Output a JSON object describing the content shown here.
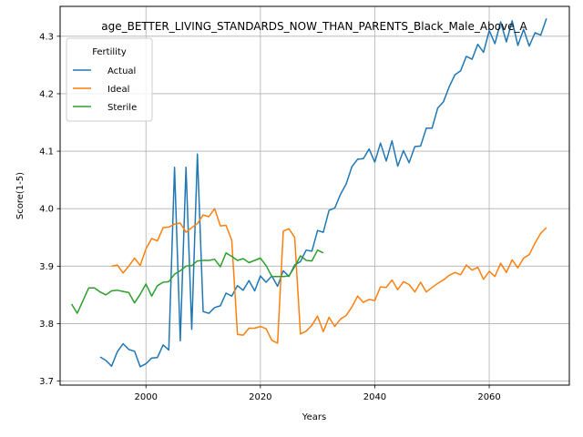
{
  "chart_data": {
    "type": "line",
    "title": "age_BETTER_LIVING_STANDARDS_NOW_THAN_PARENTS_Black_Male_Above_A",
    "xlabel": "Years",
    "ylabel": "Score(1-5)",
    "xlim": [
      1985,
      2074
    ],
    "ylim": [
      3.693,
      4.352
    ],
    "xticks": [
      2000,
      2020,
      2040,
      2060
    ],
    "yticks": [
      3.7,
      3.8,
      3.9,
      4.0,
      4.1,
      4.2,
      4.3
    ],
    "xtick_labels": [
      "2000",
      "2020",
      "2040",
      "2060"
    ],
    "ytick_labels": [
      "3.7",
      "3.8",
      "3.9",
      "4.0",
      "4.1",
      "4.2",
      "4.3"
    ],
    "grid": true,
    "legend": {
      "title": "Fertility",
      "placement": "top-left"
    },
    "series": [
      {
        "name": "Actual",
        "color": "#1f77b4",
        "x": [
          1992,
          1993,
          1994,
          1995,
          1996,
          1997,
          1998,
          1999,
          2000,
          2001,
          2002,
          2003,
          2004,
          2005,
          2006,
          2007,
          2008,
          2009,
          2010,
          2011,
          2012,
          2013,
          2014,
          2015,
          2016,
          2017,
          2018,
          2019,
          2020,
          2021,
          2022,
          2023,
          2024,
          2025,
          2026,
          2027,
          2028,
          2029,
          2030,
          2031,
          2032,
          2033,
          2034,
          2035,
          2036,
          2037,
          2038,
          2039,
          2040,
          2041,
          2042,
          2043,
          2044,
          2045,
          2046,
          2047,
          2048,
          2049,
          2050,
          2051,
          2052,
          2053,
          2054,
          2055,
          2056,
          2057,
          2058,
          2059,
          2060,
          2061,
          2062,
          2063,
          2064,
          2065,
          2066,
          2067,
          2068,
          2069,
          2070
        ],
        "values": [
          3.742,
          3.736,
          3.726,
          3.751,
          3.765,
          3.755,
          3.752,
          3.725,
          3.73,
          3.74,
          3.741,
          3.763,
          3.754,
          4.072,
          3.77,
          4.072,
          3.79,
          4.095,
          3.821,
          3.818,
          3.828,
          3.831,
          3.853,
          3.848,
          3.866,
          3.858,
          3.875,
          3.857,
          3.883,
          3.872,
          3.883,
          3.865,
          3.892,
          3.882,
          3.902,
          3.908,
          3.928,
          3.926,
          3.962,
          3.959,
          3.997,
          4.001,
          4.025,
          4.043,
          4.073,
          4.086,
          4.087,
          4.104,
          4.081,
          4.114,
          4.083,
          4.118,
          4.074,
          4.101,
          4.08,
          4.108,
          4.109,
          4.14,
          4.14,
          4.175,
          4.186,
          4.212,
          4.233,
          4.24,
          4.265,
          4.26,
          4.286,
          4.272,
          4.31,
          4.287,
          4.325,
          4.29,
          4.327,
          4.284,
          4.312,
          4.283,
          4.306,
          4.302,
          4.331
        ]
      },
      {
        "name": "Ideal",
        "color": "#ff7f0e",
        "x": [
          1994,
          1995,
          1996,
          1997,
          1998,
          1999,
          2000,
          2001,
          2002,
          2003,
          2004,
          2005,
          2006,
          2007,
          2008,
          2009,
          2010,
          2011,
          2012,
          2013,
          2014,
          2015,
          2016,
          2017,
          2018,
          2019,
          2020,
          2021,
          2022,
          2023,
          2024,
          2025,
          2026,
          2027,
          2028,
          2029,
          2030,
          2031,
          2032,
          2033,
          2034,
          2035,
          2036,
          2037,
          2038,
          2039,
          2040,
          2041,
          2042,
          2043,
          2044,
          2045,
          2046,
          2047,
          2048,
          2049,
          2050,
          2051,
          2052,
          2053,
          2054,
          2055,
          2056,
          2057,
          2058,
          2059,
          2060,
          2061,
          2062,
          2063,
          2064,
          2065,
          2066,
          2067,
          2068,
          2069,
          2070
        ],
        "values": [
          3.9,
          3.902,
          3.888,
          3.9,
          3.914,
          3.901,
          3.93,
          3.948,
          3.944,
          3.967,
          3.968,
          3.973,
          3.975,
          3.959,
          3.967,
          3.974,
          3.989,
          3.986,
          4.0,
          3.97,
          3.971,
          3.945,
          3.781,
          3.78,
          3.792,
          3.792,
          3.795,
          3.791,
          3.771,
          3.766,
          3.961,
          3.965,
          3.95,
          3.782,
          3.787,
          3.797,
          3.813,
          3.786,
          3.811,
          3.795,
          3.808,
          3.814,
          3.829,
          3.848,
          3.837,
          3.842,
          3.84,
          3.864,
          3.863,
          3.876,
          3.859,
          3.873,
          3.868,
          3.855,
          3.872,
          3.855,
          3.863,
          3.87,
          3.876,
          3.884,
          3.889,
          3.885,
          3.902,
          3.893,
          3.898,
          3.877,
          3.891,
          3.882,
          3.905,
          3.889,
          3.911,
          3.897,
          3.914,
          3.92,
          3.94,
          3.957,
          3.967
        ]
      },
      {
        "name": "Sterile",
        "color": "#2ca02c",
        "x": [
          1987,
          1988,
          1989,
          1990,
          1991,
          1992,
          1993,
          1994,
          1995,
          1996,
          1997,
          1998,
          1999,
          2000,
          2001,
          2002,
          2003,
          2004,
          2005,
          2006,
          2007,
          2008,
          2009,
          2010,
          2011,
          2012,
          2013,
          2014,
          2015,
          2016,
          2017,
          2018,
          2019,
          2020,
          2021,
          2022,
          2023,
          2024,
          2025,
          2026,
          2027,
          2028,
          2029,
          2030,
          2031
        ],
        "values": [
          3.834,
          3.818,
          3.84,
          3.862,
          3.862,
          3.855,
          3.85,
          3.857,
          3.858,
          3.856,
          3.854,
          3.836,
          3.851,
          3.869,
          3.848,
          3.866,
          3.872,
          3.873,
          3.886,
          3.892,
          3.9,
          3.901,
          3.909,
          3.91,
          3.91,
          3.912,
          3.899,
          3.923,
          3.917,
          3.91,
          3.913,
          3.906,
          3.91,
          3.914,
          3.901,
          3.882,
          3.882,
          3.882,
          3.883,
          3.899,
          3.918,
          3.91,
          3.909,
          3.928,
          3.923
        ]
      }
    ]
  }
}
